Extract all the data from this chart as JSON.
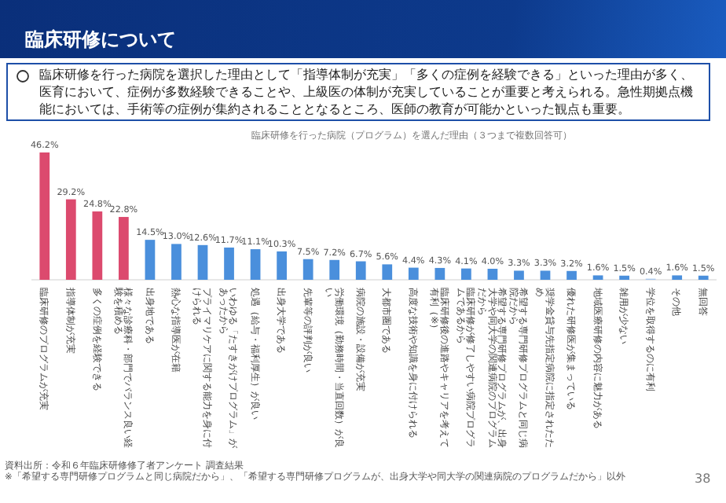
{
  "chart_data": {
    "type": "bar",
    "title": "臨床研修を行った病院（プログラム）を選んだ理由（３つまで複数回答可）",
    "categories": [
      "臨床研修のプログラムが充実",
      "指導体制が充実",
      "多くの症例を経験できる",
      "様々な診療科・部門でバランス良い経験を積める",
      "出身地である",
      "熱心な指導医が在籍",
      "プライマリケアに関する能力を身に付けられる",
      "いわゆる「たすきがけプログラム」があったから",
      "処遇（給与・福利厚生）が良い",
      "出身大学である",
      "先輩等の評判が良い",
      "労働環境（勤務時間・当直回数）が良い",
      "病院の施設・設備が充実",
      "大都市圏である",
      "高度な技術や知識を身に付けられる",
      "臨床研修後の進路やキャリアを考えて有利（※）",
      "臨床研修が修了しやすい病院プログラムであるから",
      "希望する専門研修プログラムが、出身大学や同大学の関連病院のプログラムだから",
      "希望する専門研修プログラムと同じ病院だから",
      "奨学金貸与先指定病院に指定されたため",
      "優れた研修医が集まっている",
      "地域医療研修の内容に魅力がある",
      "雑用が少ない",
      "学位を取得するのに有利",
      "その他",
      "無回答"
    ],
    "values": [
      46.2,
      29.2,
      24.8,
      22.8,
      14.5,
      13.0,
      12.6,
      11.7,
      11.1,
      10.3,
      7.5,
      7.2,
      6.7,
      5.6,
      4.4,
      4.3,
      4.1,
      4.0,
      3.3,
      3.3,
      3.2,
      1.6,
      1.5,
      0.4,
      1.6,
      1.5
    ],
    "value_labels": [
      "46.2%",
      "29.2%",
      "24.8%",
      "22.8%",
      "14.5%",
      "13.0%",
      "12.6%",
      "11.7%",
      "11.1%",
      "10.3%",
      "7.5%",
      "7.2%",
      "6.7%",
      "5.6%",
      "4.4%",
      "4.3%",
      "4.1%",
      "4.0%",
      "3.3%",
      "3.3%",
      "3.2%",
      "1.6%",
      "1.5%",
      "0.4%",
      "1.6%",
      "1.5%"
    ],
    "colors": [
      "#dc4a6e",
      "#dc4a6e",
      "#dc4a6e",
      "#dc4a6e",
      "#4a8fdc",
      "#4a8fdc",
      "#4a8fdc",
      "#4a8fdc",
      "#4a8fdc",
      "#4a8fdc",
      "#4a8fdc",
      "#4a8fdc",
      "#4a8fdc",
      "#4a8fdc",
      "#4a8fdc",
      "#4a8fdc",
      "#4a8fdc",
      "#4a8fdc",
      "#4a8fdc",
      "#4a8fdc",
      "#4a8fdc",
      "#4a8fdc",
      "#4a8fdc",
      "#a9c8ee",
      "#4a8fdc",
      "#4a8fdc"
    ],
    "annotations": [
      "臨床研修について",
      "臨床研修を行った病院を選択した理由として「指導体制が充実」「多くの症例を経験できる」といった理由が多く、医育において、症例が多数経験できることや、上級医の体制が充実していることが重要と考えられる。急性期拠点機能においては、手術等の症例が集約されることとなるところ、医師の教育が可能かといった観点も重要。",
      "資料出所：令和６年臨床研修修了者アンケート 調査結果",
      "※「希望する専門研修プログラムと同じ病院だから」、「希望する専門研修プログラムが、出身大学や同大学の関連病院のプログラムだから」以外",
      "38"
    ]
  }
}
